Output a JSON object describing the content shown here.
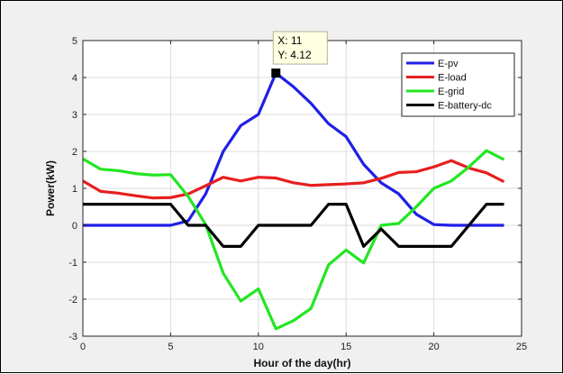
{
  "chart_data": {
    "type": "line",
    "xlabel": "Hour of the day(hr)",
    "ylabel": "Power(kW)",
    "xlim": [
      0,
      25
    ],
    "ylim": [
      -3,
      5
    ],
    "xticks": [
      0,
      5,
      10,
      15,
      20,
      25
    ],
    "yticks": [
      -3,
      -2,
      -1,
      0,
      1,
      2,
      3,
      4,
      5
    ],
    "grid": true,
    "legend_position": "top-right",
    "x": [
      0,
      1,
      2,
      3,
      4,
      5,
      6,
      7,
      8,
      9,
      10,
      11,
      12,
      13,
      14,
      15,
      16,
      17,
      18,
      19,
      20,
      21,
      22,
      23,
      24
    ],
    "series": [
      {
        "name": "E-pv",
        "color": "#1f1fe6",
        "values": [
          0,
          0,
          0,
          0,
          0,
          0,
          0.12,
          0.85,
          2.0,
          2.7,
          3.0,
          4.12,
          3.75,
          3.3,
          2.75,
          2.4,
          1.65,
          1.15,
          0.85,
          0.3,
          0.02,
          0,
          0,
          0,
          0
        ]
      },
      {
        "name": "E-load",
        "color": "#e61f1f",
        "values": [
          1.2,
          0.92,
          0.87,
          0.8,
          0.74,
          0.75,
          0.85,
          1.07,
          1.3,
          1.2,
          1.3,
          1.28,
          1.15,
          1.08,
          1.1,
          1.12,
          1.15,
          1.27,
          1.43,
          1.45,
          1.58,
          1.75,
          1.55,
          1.42,
          1.18
        ]
      },
      {
        "name": "E-grid",
        "color": "#22e622",
        "values": [
          1.8,
          1.52,
          1.48,
          1.4,
          1.36,
          1.37,
          0.78,
          0.02,
          -1.3,
          -2.05,
          -1.72,
          -2.8,
          -2.58,
          -2.25,
          -1.07,
          -0.67,
          -1.02,
          0.0,
          0.05,
          0.5,
          1.0,
          1.2,
          1.58,
          2.02,
          1.78
        ]
      },
      {
        "name": "E-battery-dc",
        "color": "#000000",
        "values": [
          0.57,
          0.57,
          0.57,
          0.57,
          0.57,
          0.57,
          0.0,
          0.0,
          -0.57,
          -0.57,
          0.0,
          0.0,
          0.0,
          0.0,
          0.57,
          0.57,
          -0.57,
          -0.1,
          -0.57,
          -0.57,
          -0.57,
          -0.57,
          0.0,
          0.57,
          0.57
        ]
      }
    ],
    "datatip": {
      "x": 11,
      "y": 4.12,
      "line1": "X: 11",
      "line2": "Y: 4.12"
    }
  }
}
